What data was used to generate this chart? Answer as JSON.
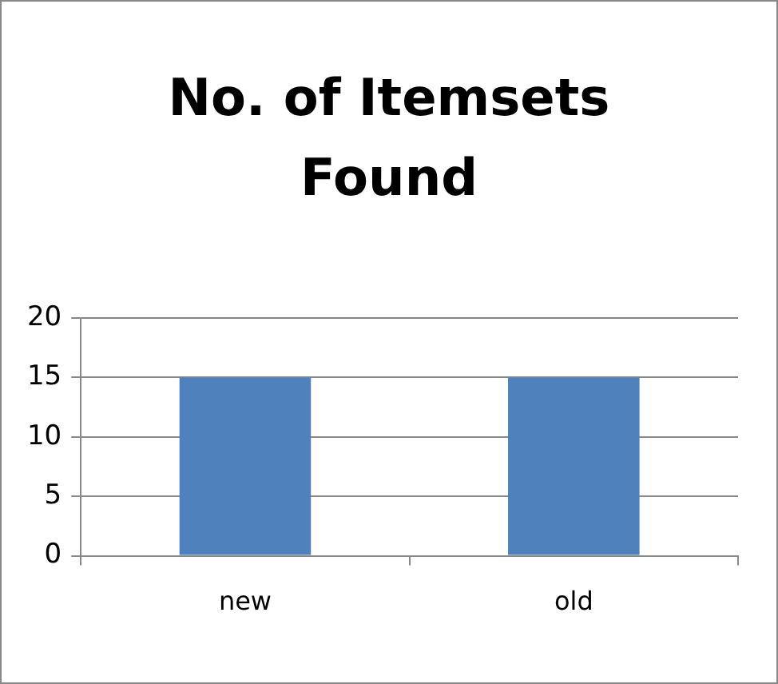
{
  "chart_data": {
    "type": "bar",
    "title": "No. of Itemsets Found",
    "categories": [
      "new",
      "old"
    ],
    "values": [
      15,
      15
    ],
    "color": "#4f81bd",
    "ylim": [
      0,
      20
    ],
    "yticks": [
      0,
      5,
      10,
      15,
      20
    ],
    "grid": "y"
  }
}
